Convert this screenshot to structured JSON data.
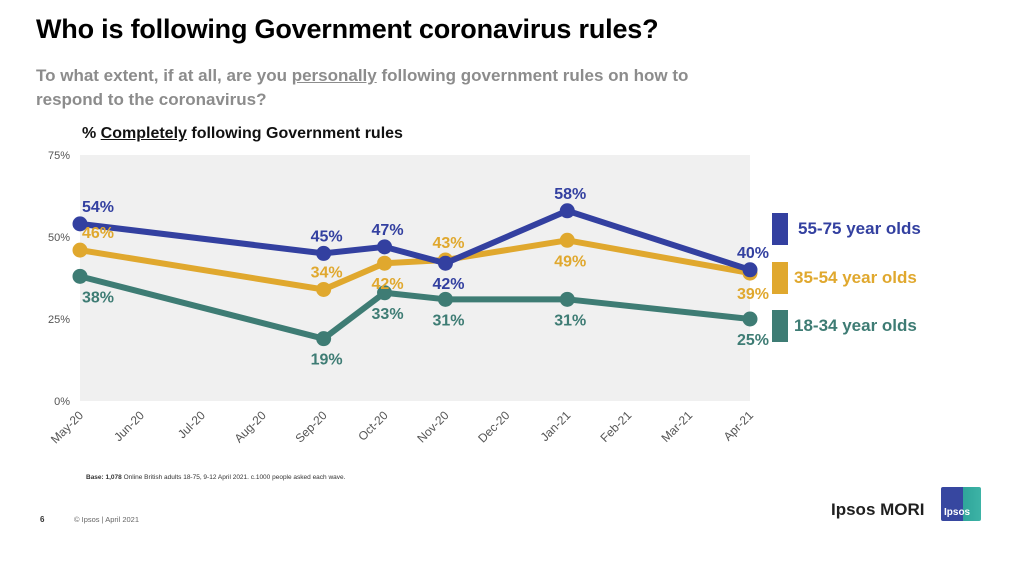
{
  "slide": {
    "title": "Who is following Government coronavirus rules?",
    "question_pre": "To what extent, if at all, are you ",
    "question_emph": "personally",
    "question_post": " following government rules on how to respond to the coronavirus?",
    "chart_heading_pre": "% ",
    "chart_heading_emph": "Completely",
    "chart_heading_post": " following Government rules",
    "base_bold": "Base: 1,078",
    "base_text": " Online British adults 18-75, 9-12 April 2021. c.1000 people asked each wave.",
    "page_number": "6",
    "copyright": "© Ipsos | April 2021",
    "brand": "Ipsos MORI",
    "logo_text": "Ipsos"
  },
  "chart_data": {
    "type": "line",
    "title": "% Completely following Government rules",
    "xlabel": "",
    "ylabel": "",
    "ylim": [
      0,
      75
    ],
    "yticks": [
      0,
      25,
      50,
      75
    ],
    "ytick_labels": [
      "0%",
      "25%",
      "50%",
      "75%"
    ],
    "categories": [
      "May-20",
      "Jun-20",
      "Jul-20",
      "Aug-20",
      "Sep-20",
      "Oct-20",
      "Nov-20",
      "Dec-20",
      "Jan-21",
      "Feb-21",
      "Mar-21",
      "Apr-21"
    ],
    "grid": false,
    "legend": "right",
    "series": [
      {
        "name": "55-75 year olds",
        "color": "#3340a0",
        "values": [
          54,
          null,
          null,
          null,
          45,
          47,
          42,
          null,
          58,
          null,
          null,
          40
        ],
        "label_pos": [
          "above",
          null,
          null,
          null,
          "above",
          "above",
          "below",
          null,
          "above",
          null,
          null,
          "above"
        ]
      },
      {
        "name": "35-54 year olds",
        "color": "#e0a82e",
        "values": [
          46,
          null,
          null,
          null,
          34,
          42,
          43,
          null,
          49,
          null,
          null,
          39
        ],
        "label_pos": [
          "above",
          null,
          null,
          null,
          "above",
          "below",
          "above",
          null,
          "below",
          null,
          null,
          "below"
        ]
      },
      {
        "name": "18-34 year olds",
        "color": "#3e7c74",
        "values": [
          38,
          null,
          null,
          null,
          19,
          33,
          31,
          null,
          31,
          null,
          null,
          25
        ],
        "label_pos": [
          "below",
          null,
          null,
          null,
          "below",
          "below",
          "below",
          null,
          "below",
          null,
          null,
          "below"
        ]
      }
    ]
  }
}
